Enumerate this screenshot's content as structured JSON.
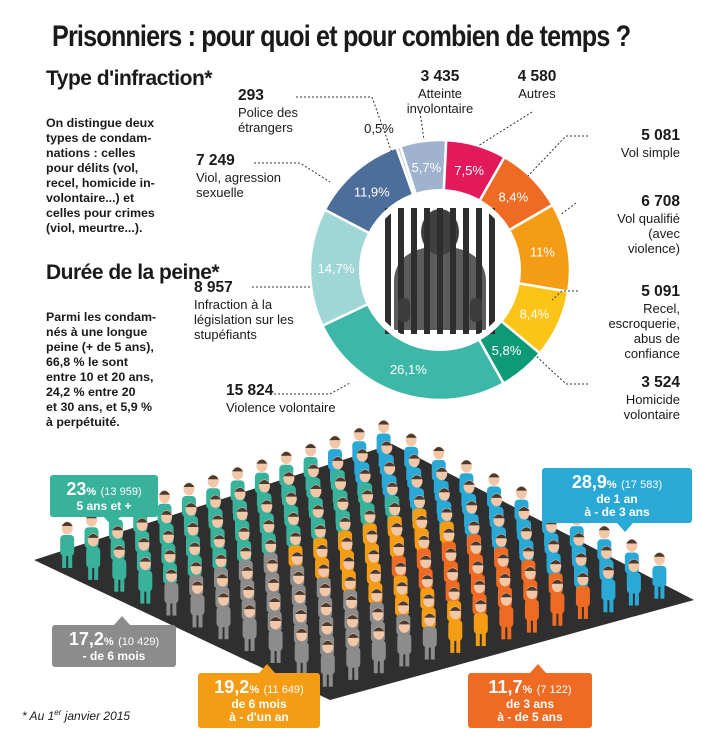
{
  "title": "Prisonniers : pour quoi et pour combien de temps ?",
  "sidebar": {
    "type_heading": "Type\nd'infraction*",
    "type_text": "On distingue deux\ntypes de condam-\nnations : celles\npour délits (vol,\nrecel, homicide in-\nvolontaire...) et\ncelles pour crimes\n(viol, meurtre...).",
    "duree_heading": "Durée\nde la peine*",
    "duree_text": "Parmi les condam-\nnés à une longue\npeine (+ de 5 ans),\n66,8 % le sont\nentre 10 et 20 ans,\n24,2 % entre 20\net 30 ans, et 5,9 %\nà perpétuité."
  },
  "chart_data": [
    {
      "type": "pie",
      "series": [
        {
          "label": "Atteinte involontaire",
          "count": "3 435",
          "percent": "5,7%",
          "value": 5.7,
          "color": "#9fb3cf"
        },
        {
          "label": "Autres",
          "count": "4 580",
          "percent": "7,5%",
          "value": 7.5,
          "color": "#e2195a"
        },
        {
          "label": "Vol simple",
          "count": "5 081",
          "percent": "8,4%",
          "value": 8.4,
          "color": "#ef6a22"
        },
        {
          "label": "Vol qualifié (avec violence)",
          "count": "6 708",
          "percent": "11%",
          "value": 11.0,
          "color": "#f59c15"
        },
        {
          "label": "Recel, escroquerie, abus de confiance",
          "count": "5 091",
          "percent": "8,4%",
          "value": 8.4,
          "color": "#fcc417"
        },
        {
          "label": "Homicide volontaire",
          "count": "3 524",
          "percent": "5,8%",
          "value": 5.8,
          "color": "#0e9a76"
        },
        {
          "label": "Violence volontaire",
          "count": "15 824",
          "percent": "26,1%",
          "value": 26.1,
          "color": "#3db8a8"
        },
        {
          "label": "Infraction à la législation sur les stupéfiants",
          "count": "8 957",
          "percent": "14,7%",
          "value": 14.7,
          "color": "#9fd6d6"
        },
        {
          "label": "Viol, agression sexuelle",
          "count": "7 249",
          "percent": "11,9%",
          "value": 11.9,
          "color": "#4d6e9a"
        },
        {
          "label": "Police des étrangers",
          "count": "293",
          "percent": "0,5%",
          "value": 0.5,
          "color": "#c8d3e2"
        }
      ]
    },
    {
      "type": "bar",
      "series": [
        {
          "label_lines": [
            "5 ans et +"
          ],
          "percent": "23",
          "count": "(13 959)",
          "value": 23.0,
          "color": "#39b29c"
        },
        {
          "label_lines": [
            "de 1 an",
            "à - de 3 ans"
          ],
          "percent": "28,9",
          "count": "(17 583)",
          "value": 28.9,
          "color": "#2ba9d6"
        },
        {
          "label_lines": [
            "- de 6 mois"
          ],
          "percent": "17,2",
          "count": "(10 429)",
          "value": 17.2,
          "color": "#8c8c8c"
        },
        {
          "label_lines": [
            "de 6 mois",
            "à - d'un an"
          ],
          "percent": "19,2",
          "count": "(11 649)",
          "value": 19.2,
          "color": "#f59c15"
        },
        {
          "label_lines": [
            "de 3 ans",
            "à - de 5 ans"
          ],
          "percent": "11,7",
          "count": "(7 122)",
          "value": 11.7,
          "color": "#ef6a22"
        }
      ]
    }
  ],
  "footnote": {
    "prefix": "* Au 1",
    "sup": "er",
    "suffix": " janvier 2015"
  }
}
